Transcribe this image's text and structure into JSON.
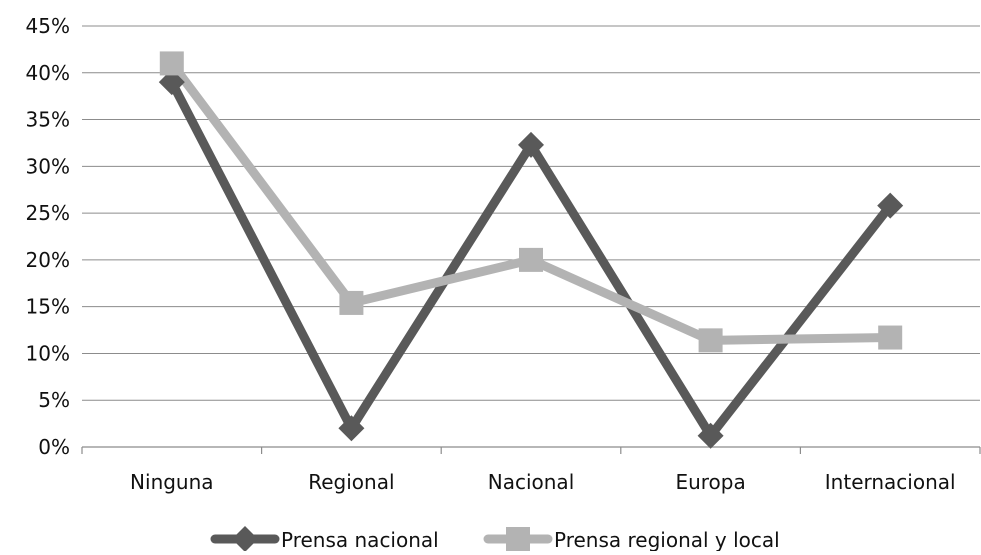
{
  "chart_data": {
    "type": "line",
    "categories": [
      "Ninguna",
      "Regional",
      "Nacional",
      "Europa",
      "Internacional"
    ],
    "series": [
      {
        "name": "Prensa nacional",
        "values": [
          39,
          2,
          32.3,
          1.2,
          25.8
        ],
        "color": "#595959",
        "marker": "diamond"
      },
      {
        "name": "Prensa regional y local",
        "values": [
          41,
          15.4,
          20,
          11.4,
          11.7
        ],
        "color": "#b3b3b3",
        "marker": "square"
      }
    ],
    "yticks": [
      "0%",
      "5%",
      "10%",
      "15%",
      "20%",
      "25%",
      "30%",
      "35%",
      "40%",
      "45%"
    ],
    "ylim": [
      0,
      45
    ],
    "ytick_step": 5,
    "grid": true,
    "legend_position": "bottom"
  }
}
